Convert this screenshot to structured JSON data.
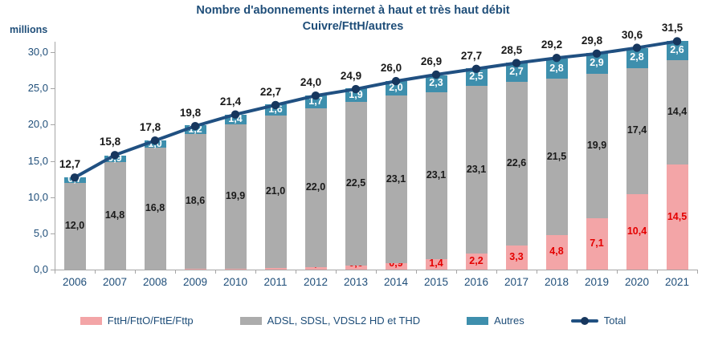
{
  "title": {
    "line1": "Nombre d'abonnements internet à haut et très haut débit",
    "line2": "Cuivre/FttH/autres"
  },
  "y_axis": {
    "unit_label": "millions",
    "tick_values": [
      0,
      5,
      10,
      15,
      20,
      25,
      30
    ],
    "tick_labels": [
      "0,0",
      "5,0",
      "10,0",
      "15,0",
      "20,0",
      "25,0",
      "30,0"
    ]
  },
  "legend": [
    {
      "label": "FttH/FttO/FttE/Fttp",
      "color": "#F3A5A7",
      "type": "swatch"
    },
    {
      "label": "ADSL, SDSL, VDSL2 HD et THD",
      "color": "#ACACAC",
      "type": "swatch"
    },
    {
      "label": "Autres",
      "color": "#3E8FAD",
      "type": "swatch"
    },
    {
      "label": "Total",
      "color": "#205081",
      "type": "line-marker"
    }
  ],
  "colors": {
    "title_navy": "#1F4E79",
    "axis_gray": "#A6A6A6",
    "pink_series": "#F3A5A7",
    "gray_series": "#ACACAC",
    "teal_series": "#3E8FAD",
    "line": "#205081",
    "marker": "#17375E",
    "pink_label_red": "#E40000",
    "gray_label_black": "#1A1A1A",
    "teal_label_white": "#FFFFFF"
  },
  "chart_data": {
    "type": "bar",
    "subtype": "stacked-bars-with-total-line",
    "title": "Nombre d'abonnements internet à haut et très haut débit Cuivre/FttH/autres",
    "xlabel": "",
    "ylabel": "millions",
    "ylim": [
      0,
      30
    ],
    "grid": false,
    "legend_position": "bottom",
    "categories": [
      "2006",
      "2007",
      "2008",
      "2009",
      "2010",
      "2011",
      "2012",
      "2013",
      "2014",
      "2015",
      "2016",
      "2017",
      "2018",
      "2019",
      "2020",
      "2021"
    ],
    "series": [
      {
        "name": "FttH/FttO/FttE/Fttp",
        "color": "#F3A5A7",
        "label_color": "#E40000",
        "values": [
          0.0,
          0.0,
          0.0,
          0.1,
          0.1,
          0.2,
          0.3,
          0.6,
          0.9,
          1.4,
          2.2,
          3.3,
          4.8,
          7.1,
          10.4,
          14.5
        ]
      },
      {
        "name": "ADSL, SDSL, VDSL2 HD et THD",
        "color": "#ACACAC",
        "label_color": "#1A1A1A",
        "values": [
          12.0,
          14.8,
          16.8,
          18.6,
          19.9,
          21.0,
          22.0,
          22.5,
          23.1,
          23.1,
          23.1,
          22.6,
          21.5,
          19.9,
          17.4,
          14.4
        ]
      },
      {
        "name": "Autres",
        "color": "#3E8FAD",
        "label_color": "#FFFFFF",
        "values": [
          0.7,
          0.9,
          1.0,
          1.2,
          1.4,
          1.6,
          1.7,
          1.9,
          2.0,
          2.3,
          2.5,
          2.7,
          2.8,
          2.9,
          2.8,
          2.6
        ]
      }
    ],
    "line": {
      "name": "Total",
      "color": "#205081",
      "marker_color": "#17375E",
      "values": [
        12.7,
        15.8,
        17.8,
        19.8,
        21.4,
        22.7,
        24.0,
        24.9,
        26.0,
        26.9,
        27.7,
        28.5,
        29.2,
        29.8,
        30.6,
        31.5
      ]
    }
  }
}
